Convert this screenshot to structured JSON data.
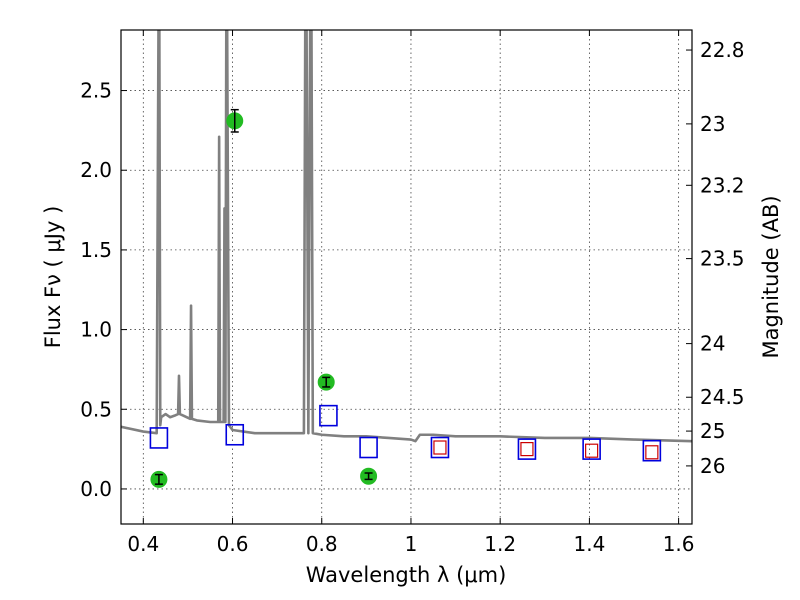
{
  "chart_data": {
    "type": "scatter",
    "title": "",
    "xlabel": "Wavelength  λ (μm)",
    "ylabel": "Flux  Fν  ( μJy )",
    "y2label": "Magnitude (AB)",
    "xlim": [
      0.35,
      1.63
    ],
    "ylim": [
      -0.22,
      2.88
    ],
    "grid": true,
    "legend": "none",
    "x_ticks": [
      0.4,
      0.6,
      0.8,
      1.0,
      1.2,
      1.4,
      1.6
    ],
    "x_tick_labels": [
      "0.4",
      "0.6",
      "0.8",
      "1",
      "1.2",
      "1.4",
      "1.6"
    ],
    "y_ticks": [
      0.0,
      0.5,
      1.0,
      1.5,
      2.0,
      2.5
    ],
    "y_tick_labels": [
      "0.0",
      "0.5",
      "1.0",
      "1.5",
      "2.0",
      "2.5"
    ],
    "y2_ticks": [
      {
        "label": "22.8",
        "mag": 22.8
      },
      {
        "label": "23",
        "mag": 23.0
      },
      {
        "label": "23.2",
        "mag": 23.2
      },
      {
        "label": "23.5",
        "mag": 23.5
      },
      {
        "label": "24",
        "mag": 24.0
      },
      {
        "label": "24.5",
        "mag": 24.5
      },
      {
        "label": "25",
        "mag": 25.0
      },
      {
        "label": "26",
        "mag": 26.0
      }
    ],
    "colors": {
      "spectrum": "#808080",
      "observed": "#22bb22",
      "model_box": "#0000dd",
      "model_inner": "#cc0000"
    },
    "series": [
      {
        "kind": "spectrum",
        "x": [
          0.35,
          0.4,
          0.43,
          0.434,
          0.436,
          0.438,
          0.44,
          0.45,
          0.46,
          0.47,
          0.478,
          0.48,
          0.482,
          0.49,
          0.505,
          0.507,
          0.509,
          0.52,
          0.55,
          0.568,
          0.57,
          0.572,
          0.58,
          0.582,
          0.584,
          0.586,
          0.588,
          0.592,
          0.6,
          0.65,
          0.7,
          0.76,
          0.763,
          0.766,
          0.77,
          0.774,
          0.777,
          0.78,
          0.8,
          0.85,
          0.9,
          0.95,
          1.0,
          1.01,
          1.02,
          1.05,
          1.1,
          1.2,
          1.3,
          1.4,
          1.5,
          1.63
        ],
        "y": [
          0.39,
          0.36,
          0.35,
          2.88,
          2.88,
          0.4,
          0.45,
          0.47,
          0.45,
          0.46,
          0.47,
          0.71,
          0.47,
          0.46,
          0.44,
          1.15,
          0.44,
          0.43,
          0.42,
          0.42,
          2.21,
          0.42,
          0.42,
          1.76,
          0.42,
          2.88,
          2.88,
          0.4,
          0.37,
          0.35,
          0.35,
          0.35,
          2.88,
          2.88,
          0.35,
          2.88,
          2.88,
          0.35,
          0.34,
          0.33,
          0.33,
          0.32,
          0.31,
          0.3,
          0.34,
          0.34,
          0.33,
          0.33,
          0.32,
          0.32,
          0.31,
          0.3
        ]
      },
      {
        "kind": "observed",
        "x": [
          0.435,
          0.605,
          0.81,
          0.905
        ],
        "y": [
          0.06,
          2.31,
          0.67,
          0.08
        ],
        "yerr": [
          0.03,
          0.07,
          0.03,
          0.02
        ]
      },
      {
        "kind": "model_box",
        "x": [
          0.435,
          0.605,
          0.815,
          0.905,
          1.065,
          1.26,
          1.405,
          1.54
        ],
        "y": [
          0.32,
          0.34,
          0.46,
          0.26,
          0.26,
          0.25,
          0.25,
          0.24
        ]
      },
      {
        "kind": "model_inner",
        "x": [
          1.065,
          1.26,
          1.405,
          1.54
        ],
        "y": [
          0.26,
          0.25,
          0.24,
          0.23
        ]
      }
    ]
  }
}
